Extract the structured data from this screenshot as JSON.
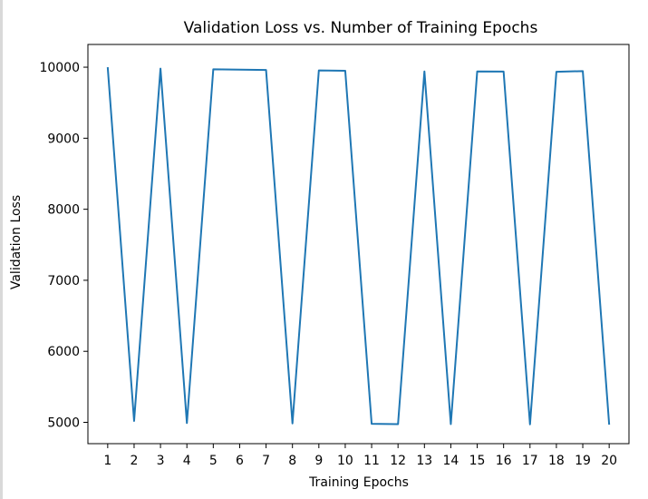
{
  "chart_data": {
    "type": "line",
    "title": "Validation Loss vs. Number of Training Epochs",
    "xlabel": "Training Epochs",
    "ylabel": "Validation Loss",
    "x": [
      1,
      2,
      3,
      4,
      5,
      6,
      7,
      8,
      9,
      10,
      11,
      12,
      13,
      14,
      15,
      16,
      17,
      18,
      19,
      20
    ],
    "xlim": [
      0.25,
      20.75
    ],
    "ylim": [
      4700,
      10320
    ],
    "yticks": [
      5000,
      6000,
      7000,
      8000,
      9000,
      10000
    ],
    "series": [
      {
        "name": "Validation Loss",
        "color": "#1f77b4",
        "values": [
          10000,
          5020,
          9980,
          4990,
          9970,
          9965,
          9960,
          4985,
          9955,
          9950,
          4980,
          4975,
          9940,
          4975,
          9940,
          9938,
          4972,
          9935,
          9945,
          4968
        ]
      }
    ],
    "grid": false
  }
}
